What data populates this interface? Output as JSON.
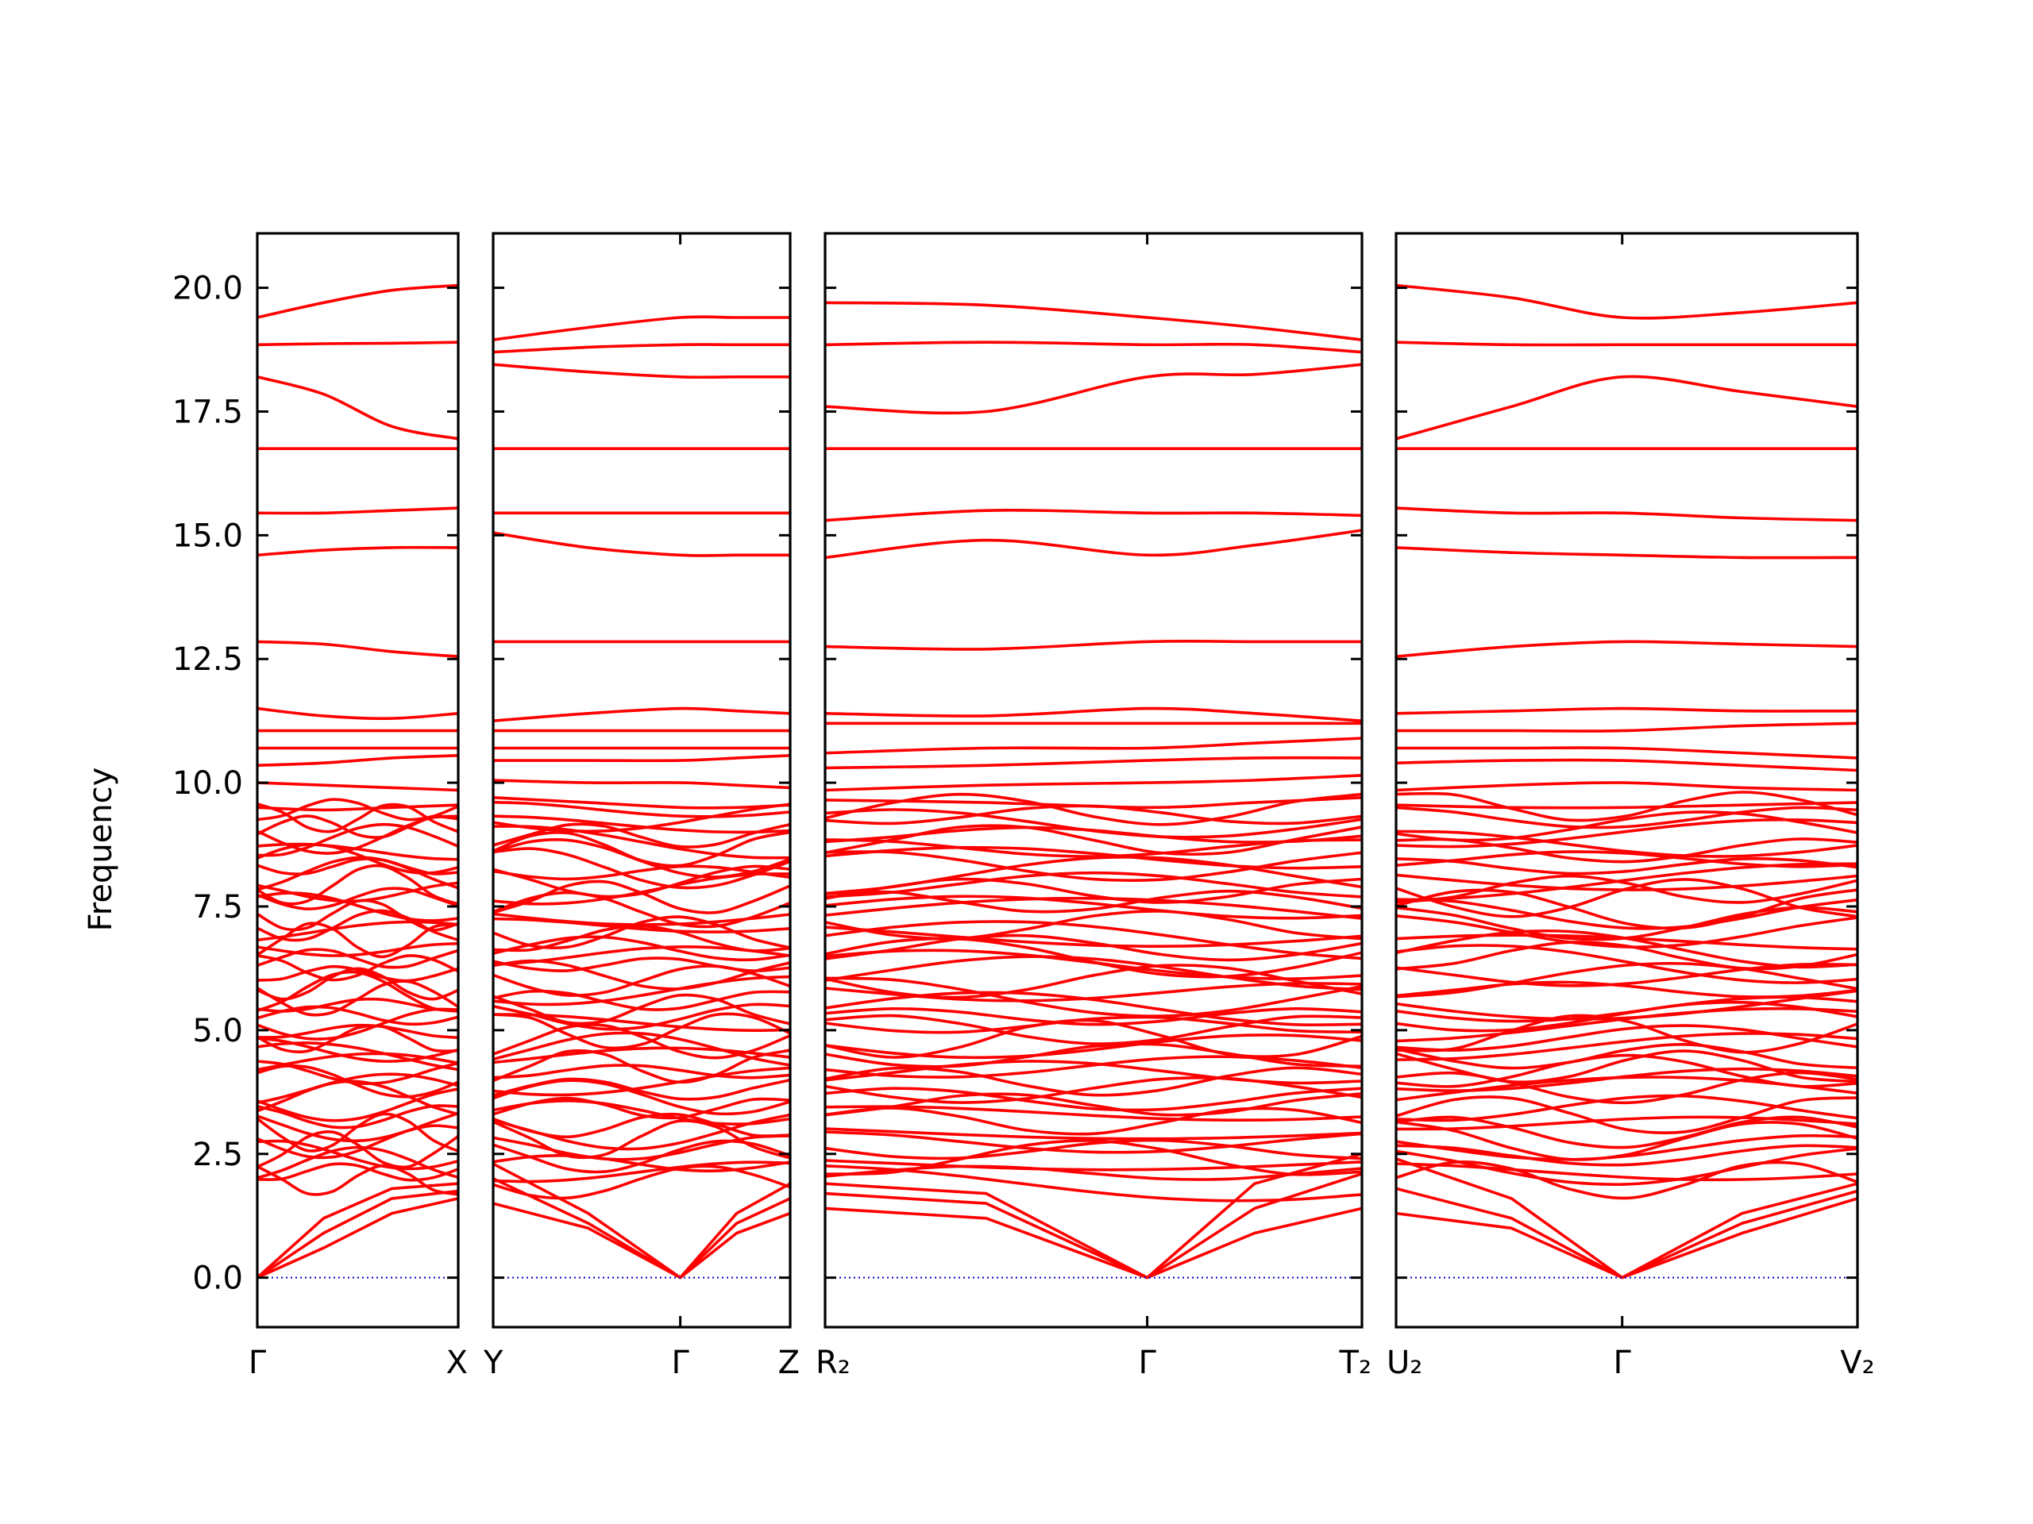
{
  "chart_data": {
    "type": "line",
    "ylabel": "Frequency",
    "ylim": [
      -1.0,
      21.1
    ],
    "yticks": [
      "0.0",
      "2.5",
      "5.0",
      "7.5",
      "10.0",
      "12.5",
      "15.0",
      "17.5",
      "20.0"
    ],
    "ytick_values": [
      0.0,
      2.5,
      5.0,
      7.5,
      10.0,
      12.5,
      15.0,
      17.5,
      20.0
    ],
    "grid": false,
    "zero_line": {
      "value": 0.0,
      "style": "dotted",
      "color": "#0000cc"
    },
    "colors": {
      "bands": "#ff0000",
      "frame": "#000000"
    },
    "high_branches": "approximate band values as read from the figure (each row = one band across its panel's path points)",
    "panels": [
      {
        "path_labels": [
          "Γ",
          "X"
        ],
        "label_positions": [
          0,
          1
        ],
        "x": [
          0,
          0.33,
          0.67,
          1.0
        ],
        "high_bands": [
          [
            19.4,
            19.7,
            19.95,
            20.05
          ],
          [
            18.85,
            18.87,
            18.88,
            18.9
          ],
          [
            18.2,
            17.85,
            17.2,
            16.95
          ],
          [
            16.75,
            16.75,
            16.75,
            16.75
          ],
          [
            15.45,
            15.45,
            15.5,
            15.55
          ],
          [
            14.6,
            14.7,
            14.75,
            14.75
          ],
          [
            12.85,
            12.8,
            12.65,
            12.55
          ],
          [
            11.5,
            11.35,
            11.3,
            11.4
          ],
          [
            11.05,
            11.05,
            11.05,
            11.05
          ],
          [
            10.7,
            10.7,
            10.7,
            10.7
          ],
          [
            10.35,
            10.4,
            10.5,
            10.55
          ],
          [
            10.0,
            9.95,
            9.9,
            9.85
          ],
          [
            9.5,
            9.45,
            9.5,
            9.55
          ]
        ],
        "acoustic": [
          [
            0.0,
            1.2,
            1.8,
            1.9
          ],
          [
            0.0,
            0.9,
            1.6,
            1.75
          ],
          [
            0.0,
            0.6,
            1.3,
            1.6
          ]
        ]
      },
      {
        "path_labels": [
          "Y",
          "Γ",
          "Z"
        ],
        "label_positions": [
          0,
          0.63,
          1
        ],
        "x": [
          0,
          0.32,
          0.63,
          0.82,
          1.0
        ],
        "high_bands": [
          [
            18.95,
            19.2,
            19.4,
            19.4,
            19.4
          ],
          [
            18.7,
            18.8,
            18.85,
            18.85,
            18.85
          ],
          [
            18.45,
            18.3,
            18.2,
            18.2,
            18.2
          ],
          [
            16.75,
            16.75,
            16.75,
            16.75,
            16.75
          ],
          [
            15.45,
            15.45,
            15.45,
            15.45,
            15.45
          ],
          [
            15.05,
            14.75,
            14.6,
            14.6,
            14.6
          ],
          [
            12.85,
            12.85,
            12.85,
            12.85,
            12.85
          ],
          [
            11.25,
            11.4,
            11.5,
            11.45,
            11.4
          ],
          [
            11.05,
            11.05,
            11.05,
            11.05,
            11.05
          ],
          [
            10.7,
            10.7,
            10.7,
            10.7,
            10.7
          ],
          [
            10.45,
            10.45,
            10.45,
            10.5,
            10.55
          ],
          [
            10.05,
            10.0,
            10.0,
            9.95,
            9.9
          ],
          [
            9.7,
            9.6,
            9.5,
            9.5,
            9.55
          ]
        ],
        "acoustic": [
          [
            2.3,
            1.3,
            0.0,
            1.3,
            1.9
          ],
          [
            2.0,
            1.1,
            0.0,
            1.1,
            1.6
          ],
          [
            1.5,
            1.0,
            0.0,
            0.9,
            1.3
          ]
        ]
      },
      {
        "path_labels": [
          "R₂",
          "Γ",
          "T₂"
        ],
        "label_positions": [
          0,
          0.6,
          1
        ],
        "x": [
          0,
          0.3,
          0.6,
          0.8,
          1.0
        ],
        "high_bands": [
          [
            19.7,
            19.65,
            19.4,
            19.2,
            18.95
          ],
          [
            18.85,
            18.9,
            18.85,
            18.85,
            18.7
          ],
          [
            17.6,
            17.5,
            18.2,
            18.25,
            18.45
          ],
          [
            16.75,
            16.75,
            16.75,
            16.75,
            16.75
          ],
          [
            15.3,
            15.5,
            15.45,
            15.45,
            15.4
          ],
          [
            14.55,
            14.9,
            14.6,
            14.8,
            15.1
          ],
          [
            12.75,
            12.7,
            12.85,
            12.85,
            12.85
          ],
          [
            11.4,
            11.35,
            11.5,
            11.4,
            11.25
          ],
          [
            11.2,
            11.2,
            11.2,
            11.2,
            11.2
          ],
          [
            10.6,
            10.7,
            10.7,
            10.8,
            10.9
          ],
          [
            10.3,
            10.35,
            10.45,
            10.5,
            10.5
          ],
          [
            9.85,
            9.95,
            10.0,
            10.05,
            10.15
          ],
          [
            9.65,
            9.6,
            9.5,
            9.6,
            9.7
          ]
        ],
        "acoustic": [
          [
            1.9,
            1.7,
            0.0,
            1.9,
            2.5
          ],
          [
            1.7,
            1.5,
            0.0,
            1.4,
            2.1
          ],
          [
            1.4,
            1.2,
            0.0,
            0.9,
            1.4
          ]
        ]
      },
      {
        "path_labels": [
          "U₂",
          "Γ",
          "V₂"
        ],
        "label_positions": [
          0,
          0.49,
          1
        ],
        "x": [
          0,
          0.25,
          0.49,
          0.75,
          1.0
        ],
        "high_bands": [
          [
            20.05,
            19.8,
            19.4,
            19.5,
            19.7
          ],
          [
            18.9,
            18.85,
            18.85,
            18.85,
            18.85
          ],
          [
            16.95,
            17.6,
            18.2,
            17.9,
            17.6
          ],
          [
            16.75,
            16.75,
            16.75,
            16.75,
            16.75
          ],
          [
            15.55,
            15.45,
            15.45,
            15.35,
            15.3
          ],
          [
            14.75,
            14.65,
            14.6,
            14.55,
            14.55
          ],
          [
            12.55,
            12.75,
            12.85,
            12.8,
            12.75
          ],
          [
            11.4,
            11.45,
            11.5,
            11.45,
            11.45
          ],
          [
            11.05,
            11.05,
            11.05,
            11.15,
            11.2
          ],
          [
            10.7,
            10.7,
            10.7,
            10.6,
            10.5
          ],
          [
            10.4,
            10.45,
            10.45,
            10.35,
            10.25
          ],
          [
            9.85,
            9.95,
            10.0,
            9.9,
            9.85
          ],
          [
            9.55,
            9.5,
            9.5,
            9.55,
            9.6
          ]
        ],
        "acoustic": [
          [
            2.4,
            1.6,
            0.0,
            1.3,
            1.9
          ],
          [
            1.8,
            1.2,
            0.0,
            1.1,
            1.75
          ],
          [
            1.3,
            1.0,
            0.0,
            0.9,
            1.6
          ]
        ]
      }
    ],
    "dense_band_range": [
      1.9,
      9.6
    ],
    "dense_band_count": 46
  }
}
